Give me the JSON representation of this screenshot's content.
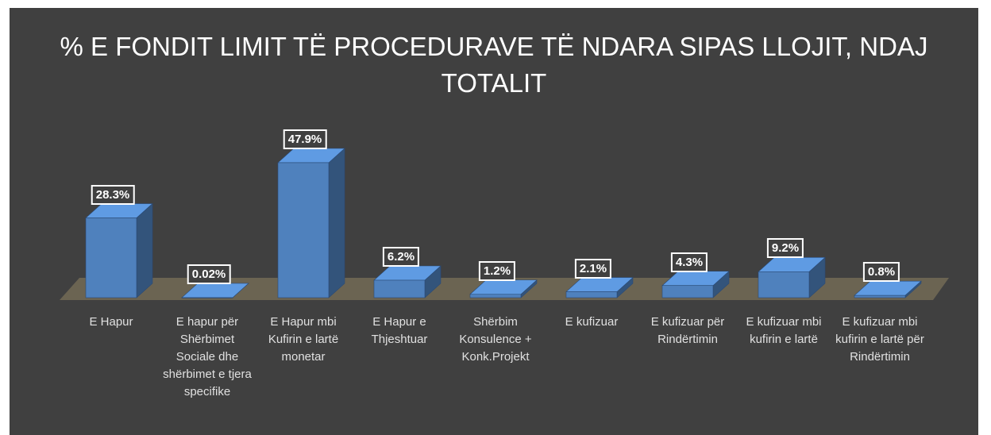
{
  "chart_data": {
    "type": "bar3d",
    "title": "% E FONDIT LIMIT TË PROCEDURAVE TË NDARA SIPAS LLOJIT, NDAJ TOTALIT",
    "categories": [
      "E Hapur",
      "E hapur për Shërbimet Sociale dhe shërbimet e tjera specifike",
      "E Hapur mbi Kufirin e lartë monetar",
      "E Hapur e Thjeshtuar",
      "Shërbim Konsulence + Konk.Projekt",
      "E kufizuar",
      "E kufizuar për Rindërtimin",
      "E kufizuar mbi kufirin e lartë",
      "E kufizuar mbi kufirin e lartë për Rindërtimin"
    ],
    "values": [
      28.3,
      0.02,
      47.9,
      6.2,
      1.2,
      2.1,
      4.3,
      9.2,
      0.8
    ],
    "value_labels": [
      "28.3%",
      "0.02%",
      "47.9%",
      "6.2%",
      "1.2%",
      "2.1%",
      "4.3%",
      "9.2%",
      "0.8%"
    ],
    "color": "#4f81bd"
  }
}
